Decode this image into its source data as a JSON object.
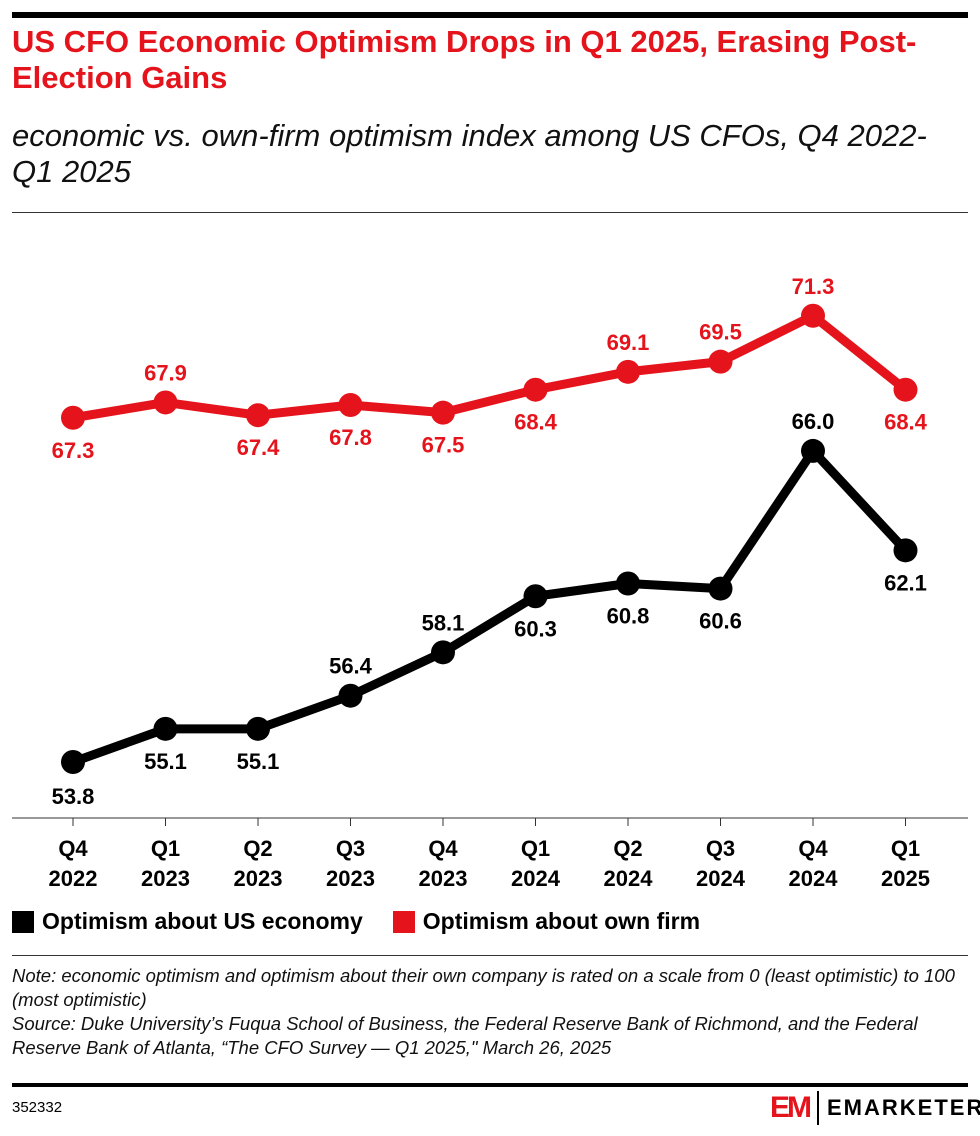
{
  "title": "US CFO Economic Optimism Drops in Q1 2025, Erasing Post-Election Gains",
  "subtitle": "economic vs. own-firm optimism index among US CFOs, Q4 2022-Q1 2025",
  "chart_data": {
    "type": "line",
    "categories": [
      [
        "Q4",
        "2022"
      ],
      [
        "Q1",
        "2023"
      ],
      [
        "Q2",
        "2023"
      ],
      [
        "Q3",
        "2023"
      ],
      [
        "Q4",
        "2023"
      ],
      [
        "Q1",
        "2024"
      ],
      [
        "Q2",
        "2024"
      ],
      [
        "Q3",
        "2024"
      ],
      [
        "Q4",
        "2024"
      ],
      [
        "Q1",
        "2025"
      ]
    ],
    "series": [
      {
        "name": "Optimism about US economy",
        "color": "#000000",
        "values": [
          53.8,
          55.1,
          55.1,
          56.4,
          58.1,
          60.3,
          60.8,
          60.6,
          66.0,
          62.1
        ]
      },
      {
        "name": "Optimism about own firm",
        "color": "#e5141c",
        "values": [
          67.3,
          67.9,
          67.4,
          67.8,
          67.5,
          68.4,
          69.1,
          69.5,
          71.3,
          68.4
        ]
      }
    ],
    "grid": false,
    "legend": "bottom-left"
  },
  "note": "Note: economic optimism and optimism about their own company is rated on a scale from 0 (least optimistic) to 100 (most optimistic)",
  "source": "Source: Duke University’s Fuqua School of Business, the Federal Reserve Bank of Richmond, and the Federal Reserve Bank of Atlanta, “The CFO Survey — Q1 2025,\" March 26, 2025",
  "chart_id": "352332",
  "logo": {
    "mark": "EM",
    "name": "EMARKETER"
  }
}
